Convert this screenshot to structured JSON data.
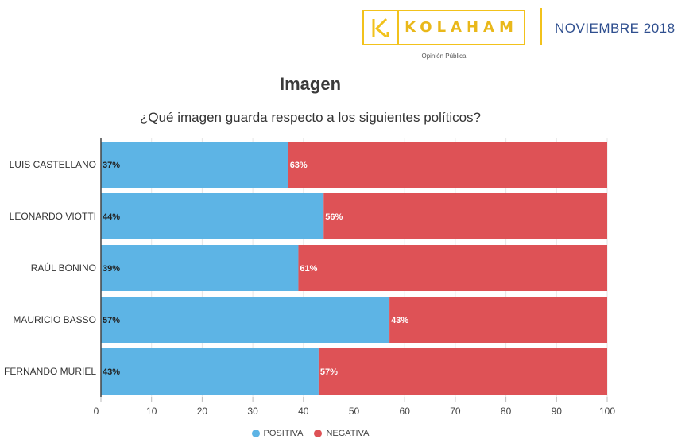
{
  "header": {
    "logo_text": "KOLAHAM",
    "logo_sub": "Opinión Pública",
    "date": "NOVIEMBRE 2018"
  },
  "colors": {
    "positiva": "#5db4e5",
    "negativa": "#de5256",
    "logo": "#f2c21b"
  },
  "chart_data": {
    "type": "bar",
    "orientation": "horizontal",
    "stacked": true,
    "title": "Imagen",
    "subtitle": "¿Qué imagen guarda respecto a los siguientes políticos?",
    "categories": [
      "LUIS CASTELLANO",
      "LEONARDO VIOTTI",
      "RAÚL BONINO",
      "MAURICIO BASSO",
      "FERNANDO MURIEL"
    ],
    "series": [
      {
        "name": "POSITIVA",
        "values": [
          37,
          44,
          39,
          57,
          43
        ],
        "labels": [
          "37%",
          "44%",
          "39%",
          "57%",
          "43%"
        ]
      },
      {
        "name": "NEGATIVA",
        "values": [
          63,
          56,
          61,
          43,
          57
        ],
        "labels": [
          "63%",
          "56%",
          "61%",
          "43%",
          "57%"
        ]
      }
    ],
    "xlim": [
      0,
      100
    ],
    "xticks": [
      "0",
      "10",
      "20",
      "30",
      "40",
      "50",
      "60",
      "70",
      "80",
      "90",
      "100"
    ],
    "legend_position": "bottom"
  }
}
